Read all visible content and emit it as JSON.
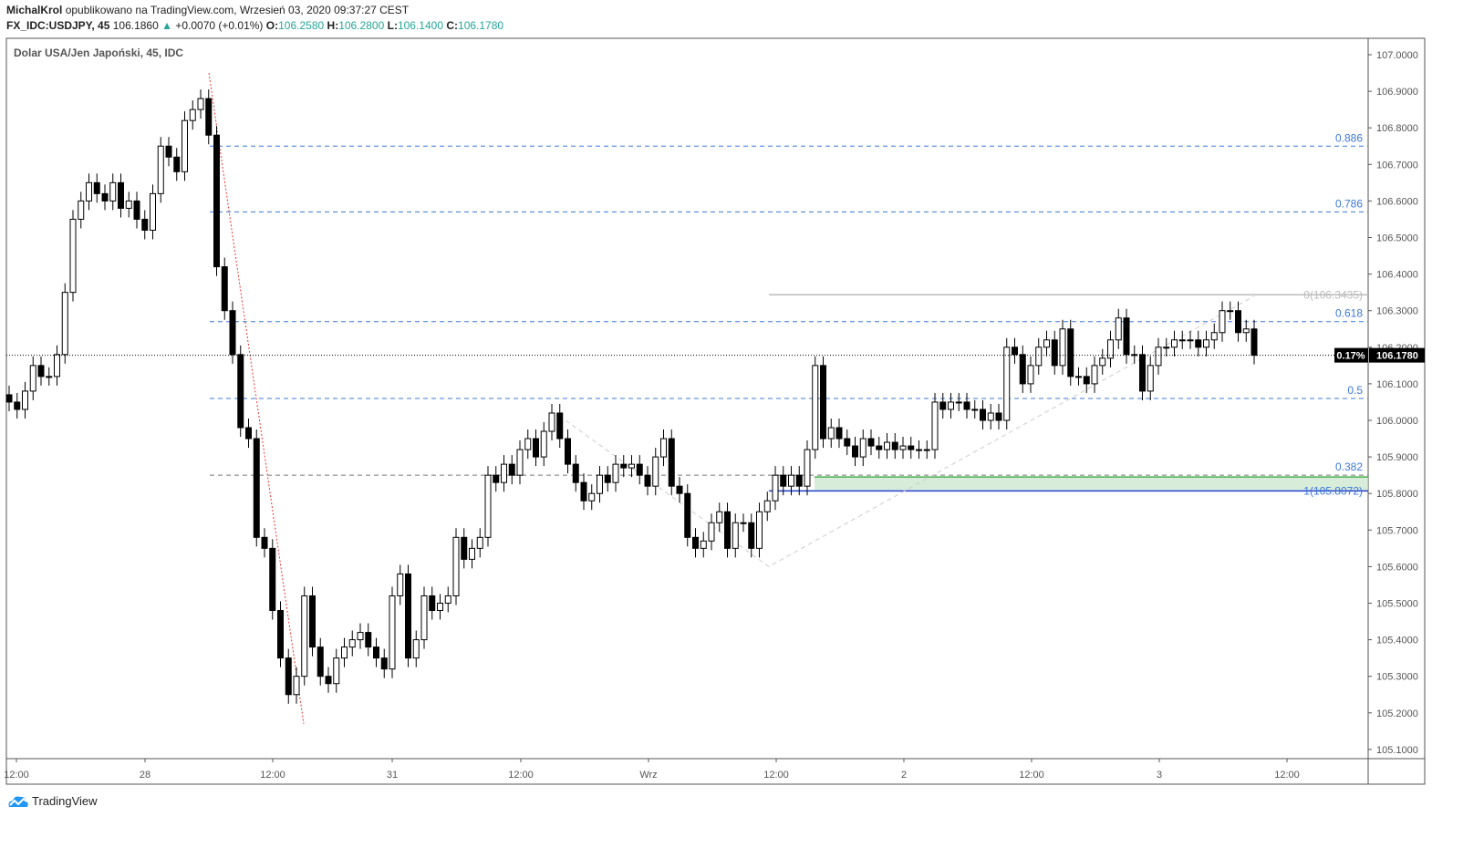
{
  "header": {
    "author": "MichalKrol",
    "published": "opublikowano na TradingView.com, Wrzesień 03, 2020 09:37:27 CEST",
    "symbol": "FX_IDC:USDJPY, 45",
    "last": "106.1860",
    "change": "+0.0070 (+0.01%)",
    "o_label": "O:",
    "o": "106.2580",
    "h_label": "H:",
    "h": "106.2800",
    "l_label": "L:",
    "l": "106.1400",
    "c_label": "C:",
    "c": "106.1780"
  },
  "legend_title": "Dolar USA/Jen Japoński, 45, IDC",
  "brand": "TradingView",
  "colors": {
    "up": "#ffffff",
    "down": "#000000",
    "fib": "#3c78d8",
    "zone": "#c8e6c9",
    "zone_border": "#4caf50",
    "level_line": "#1e3ccc",
    "trend": "#e53935",
    "accent": "#26a69a"
  },
  "chart_data": {
    "type": "candlestick",
    "title": "Dolar USA/Jen Japoński, 45, IDC",
    "ylim": [
      105.05,
      107.05
    ],
    "yticks": [
      "105.1000",
      "105.2000",
      "105.3000",
      "105.4000",
      "105.5000",
      "105.6000",
      "105.7000",
      "105.8000",
      "105.9000",
      "106.0000",
      "106.1000",
      "106.2000",
      "106.3000",
      "106.4000",
      "106.5000",
      "106.6000",
      "106.7000",
      "106.8000",
      "106.9000",
      "107.0000"
    ],
    "xticks": [
      "12:00",
      "28",
      "12:00",
      "31",
      "12:00",
      "Wrz",
      "12:00",
      "2",
      "12:00",
      "3",
      "12:00"
    ],
    "close": [
      106.05,
      106.03,
      106.08,
      106.15,
      106.12,
      106.12,
      106.18,
      106.35,
      106.55,
      106.6,
      106.65,
      106.62,
      106.6,
      106.65,
      106.58,
      106.6,
      106.55,
      106.52,
      106.62,
      106.75,
      106.72,
      106.68,
      106.82,
      106.85,
      106.88,
      106.78,
      106.42,
      106.3,
      106.18,
      105.98,
      105.95,
      105.68,
      105.65,
      105.48,
      105.35,
      105.25,
      105.3,
      105.52,
      105.38,
      105.3,
      105.28,
      105.35,
      105.38,
      105.4,
      105.42,
      105.38,
      105.35,
      105.32,
      105.52,
      105.58,
      105.35,
      105.4,
      105.52,
      105.48,
      105.5,
      105.52,
      105.68,
      105.62,
      105.65,
      105.68,
      105.85,
      105.83,
      105.88,
      105.85,
      105.92,
      105.95,
      105.9,
      105.97,
      106.02,
      105.95,
      105.88,
      105.83,
      105.78,
      105.8,
      105.85,
      105.83,
      105.88,
      105.87,
      105.88,
      105.85,
      105.82,
      105.9,
      105.95,
      105.82,
      105.8,
      105.68,
      105.65,
      105.67,
      105.72,
      105.75,
      105.65,
      105.72,
      105.72,
      105.65,
      105.75,
      105.78,
      105.85,
      105.82,
      105.85,
      105.82,
      105.92,
      106.15,
      105.95,
      105.98,
      105.95,
      105.93,
      105.9,
      105.95,
      105.93,
      105.92,
      105.94,
      105.92,
      105.93,
      105.92,
      105.92,
      105.92,
      106.05,
      106.03,
      106.05,
      106.05,
      106.03,
      106.03,
      106.0,
      106.02,
      106.0,
      106.2,
      106.18,
      106.1,
      106.15,
      106.2,
      106.22,
      106.15,
      106.25,
      106.12,
      106.12,
      106.1,
      106.15,
      106.17,
      106.22,
      106.28,
      106.18,
      106.18,
      106.08,
      106.15,
      106.2,
      106.2,
      106.22,
      106.22,
      106.22,
      106.2,
      106.22,
      106.24,
      106.3,
      106.3,
      106.24,
      106.25,
      106.178
    ],
    "fib_levels": [
      {
        "label": "0.886",
        "price": 106.75
      },
      {
        "label": "0.786",
        "price": 106.57
      },
      {
        "label": "0.618",
        "price": 106.27
      },
      {
        "label": "0.5",
        "price": 106.06
      },
      {
        "label": "0.382",
        "price": 105.85
      }
    ],
    "anchor_levels": [
      {
        "label": "0(106.3435)",
        "price": 106.3435
      },
      {
        "label": "1(105.8072)",
        "price": 105.8072
      }
    ],
    "zone": [
      105.81,
      105.845
    ],
    "current_price": "106.1780",
    "current_change": "0.17%"
  }
}
